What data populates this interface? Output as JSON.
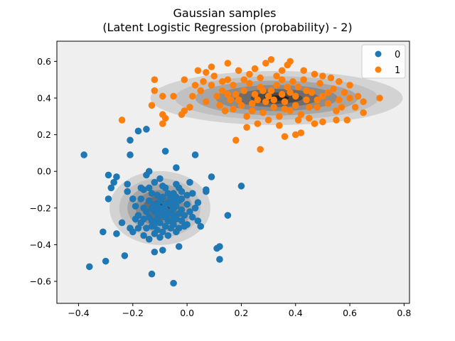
{
  "chart_data": {
    "type": "scatter",
    "title": "Gaussian samples",
    "subtitle": "(Latent Logistic Regression (probability) - 2)",
    "xlabel": "",
    "ylabel": "",
    "xlim": [
      -0.48,
      0.82
    ],
    "ylim": [
      -0.72,
      0.71
    ],
    "x_ticks": [
      -0.4,
      -0.2,
      0.0,
      0.2,
      0.4,
      0.6,
      0.8
    ],
    "x_tick_labels": [
      "−0.4",
      "−0.2",
      "0.0",
      "0.2",
      "0.4",
      "0.6",
      "0.8"
    ],
    "y_ticks": [
      -0.6,
      -0.4,
      -0.2,
      0.0,
      0.2,
      0.4,
      0.6
    ],
    "y_tick_labels": [
      "−0.6",
      "−0.4",
      "−0.2",
      "0.0",
      "0.2",
      "0.4",
      "0.6"
    ],
    "grid": false,
    "legend": {
      "placement": "top-right"
    },
    "plot_background": "#efefef",
    "density_contours": [
      {
        "cx": -0.1,
        "cy": -0.2,
        "sx": 0.12,
        "sy": 0.13,
        "levels": [
          1.55,
          1.25,
          1.0,
          0.75,
          0.52,
          0.32,
          0.15
        ],
        "colors": [
          "#d3d3d3",
          "#c1c1c1",
          "#a6a6a6",
          "#8c8c8c",
          "#6c6c6c",
          "#4a4a4a",
          "#222222"
        ]
      },
      {
        "cx": 0.33,
        "cy": 0.4,
        "sx": 0.3,
        "sy": 0.095,
        "levels": [
          1.55,
          1.25,
          1.0,
          0.75,
          0.52,
          0.32,
          0.15
        ],
        "colors": [
          "#d3d3d3",
          "#c1c1c1",
          "#a6a6a6",
          "#8c8c8c",
          "#6c6c6c",
          "#4a4a4a",
          "#222222"
        ]
      }
    ],
    "series": [
      {
        "name": "0",
        "color": "#1f77b4",
        "points": [
          [
            -0.38,
            0.09
          ],
          [
            -0.36,
            -0.52
          ],
          [
            -0.3,
            -0.49
          ],
          [
            -0.31,
            -0.33
          ],
          [
            -0.29,
            -0.02
          ],
          [
            -0.28,
            -0.09
          ],
          [
            -0.29,
            -0.15
          ],
          [
            -0.27,
            -0.06
          ],
          [
            -0.26,
            -0.03
          ],
          [
            -0.26,
            -0.34
          ],
          [
            -0.24,
            -0.28
          ],
          [
            -0.23,
            -0.46
          ],
          [
            -0.22,
            -0.11
          ],
          [
            -0.22,
            -0.07
          ],
          [
            -0.21,
            0.09
          ],
          [
            -0.21,
            0.17
          ],
          [
            -0.18,
            0.22
          ],
          [
            -0.15,
            0.23
          ],
          [
            -0.13,
            -0.56
          ],
          [
            -0.12,
            -0.44
          ],
          [
            -0.09,
            -0.43
          ],
          [
            -0.08,
            0.11
          ],
          [
            -0.05,
            -0.61
          ],
          [
            -0.04,
            0.02
          ],
          [
            -0.03,
            -0.41
          ],
          [
            0.03,
            0.09
          ],
          [
            0.02,
            -0.12
          ],
          [
            0.04,
            -0.27
          ],
          [
            0.07,
            -0.1
          ],
          [
            0.09,
            -0.03
          ],
          [
            0.11,
            -0.42
          ],
          [
            0.12,
            -0.41
          ],
          [
            0.12,
            -0.48
          ],
          [
            0.15,
            -0.24
          ],
          [
            0.2,
            -0.08
          ],
          [
            0.05,
            -0.3
          ],
          [
            0.07,
            -0.11
          ],
          [
            0.04,
            -0.17
          ],
          [
            -0.2,
            -0.33
          ],
          [
            -0.21,
            -0.31
          ],
          [
            -0.19,
            -0.19
          ],
          [
            -0.17,
            -0.15
          ],
          [
            -0.16,
            -0.1
          ],
          [
            -0.15,
            -0.02
          ],
          [
            -0.14,
            0.0
          ],
          [
            -0.14,
            -0.25
          ],
          [
            -0.13,
            -0.27
          ],
          [
            -0.13,
            -0.3
          ],
          [
            -0.12,
            -0.22
          ],
          [
            -0.12,
            -0.18
          ],
          [
            -0.11,
            -0.13
          ],
          [
            -0.11,
            -0.32
          ],
          [
            -0.1,
            -0.28
          ],
          [
            -0.1,
            -0.2
          ],
          [
            -0.09,
            -0.24
          ],
          [
            -0.09,
            -0.14
          ],
          [
            -0.08,
            -0.09
          ],
          [
            -0.08,
            -0.3
          ],
          [
            -0.07,
            -0.35
          ],
          [
            -0.07,
            -0.17
          ],
          [
            -0.06,
            -0.22
          ],
          [
            -0.06,
            -0.27
          ],
          [
            -0.05,
            -0.12
          ],
          [
            -0.05,
            -0.2
          ],
          [
            -0.04,
            -0.07
          ],
          [
            -0.04,
            -0.26
          ],
          [
            -0.03,
            -0.16
          ],
          [
            -0.03,
            -0.31
          ],
          [
            -0.02,
            -0.21
          ],
          [
            -0.02,
            -0.11
          ],
          [
            -0.01,
            -0.24
          ],
          [
            0.0,
            -0.18
          ],
          [
            0.0,
            -0.29
          ],
          [
            0.01,
            -0.06
          ],
          [
            0.01,
            -0.22
          ],
          [
            -0.18,
            -0.24
          ],
          [
            -0.17,
            -0.28
          ],
          [
            -0.16,
            -0.2
          ],
          [
            -0.15,
            -0.31
          ],
          [
            -0.14,
            -0.16
          ],
          [
            -0.13,
            -0.12
          ],
          [
            -0.12,
            -0.06
          ],
          [
            -0.11,
            -0.26
          ],
          [
            -0.1,
            -0.04
          ],
          [
            -0.09,
            -0.33
          ],
          [
            -0.08,
            -0.18
          ],
          [
            -0.07,
            -0.23
          ],
          [
            -0.06,
            -0.14
          ],
          [
            -0.05,
            -0.29
          ],
          [
            -0.04,
            -0.19
          ],
          [
            -0.03,
            -0.23
          ],
          [
            -0.02,
            -0.15
          ],
          [
            -0.01,
            -0.3
          ],
          [
            0.0,
            -0.13
          ],
          [
            -0.19,
            -0.26
          ],
          [
            -0.17,
            -0.09
          ],
          [
            -0.16,
            -0.35
          ],
          [
            -0.15,
            -0.22
          ],
          [
            -0.14,
            -0.37
          ],
          [
            -0.12,
            -0.29
          ],
          [
            -0.11,
            -0.19
          ],
          [
            -0.1,
            -0.36
          ],
          [
            -0.09,
            -0.08
          ],
          [
            -0.08,
            -0.25
          ],
          [
            -0.07,
            -0.12
          ],
          [
            -0.06,
            -0.31
          ],
          [
            -0.05,
            -0.16
          ],
          [
            -0.04,
            -0.33
          ],
          [
            -0.03,
            -0.09
          ],
          [
            -0.02,
            -0.27
          ],
          [
            -0.13,
            -0.2
          ],
          [
            -0.11,
            -0.23
          ],
          [
            -0.09,
            -0.21
          ],
          [
            -0.07,
            -0.27
          ],
          [
            -0.05,
            -0.24
          ],
          [
            -0.1,
            -0.16
          ],
          [
            -0.08,
            -0.21
          ],
          [
            -0.06,
            -0.18
          ],
          [
            -0.12,
            -0.34
          ],
          [
            -0.04,
            -0.14
          ],
          [
            0.02,
            -0.25
          ],
          [
            -0.2,
            -0.15
          ],
          [
            -0.18,
            -0.31
          ],
          [
            -0.16,
            -0.26
          ],
          [
            -0.14,
            -0.09
          ],
          [
            0.03,
            -0.2
          ]
        ]
      },
      {
        "name": "1",
        "color": "#ff7f0e",
        "points": [
          [
            -0.24,
            0.28
          ],
          [
            -0.13,
            0.36
          ],
          [
            -0.12,
            0.44
          ],
          [
            -0.12,
            0.5
          ],
          [
            -0.09,
            0.41
          ],
          [
            -0.09,
            0.31
          ],
          [
            -0.09,
            0.26
          ],
          [
            -0.08,
            0.29
          ],
          [
            -0.05,
            0.41
          ],
          [
            -0.02,
            0.31
          ],
          [
            -0.01,
            0.33
          ],
          [
            -0.01,
            0.5
          ],
          [
            0.01,
            0.35
          ],
          [
            0.02,
            0.41
          ],
          [
            0.04,
            0.55
          ],
          [
            0.07,
            0.54
          ],
          [
            0.09,
            0.57
          ],
          [
            0.15,
            0.59
          ],
          [
            0.18,
            0.17
          ],
          [
            0.27,
            0.12
          ],
          [
            0.36,
            0.19
          ],
          [
            0.4,
            0.2
          ],
          [
            0.42,
            0.21
          ],
          [
            0.63,
            0.41
          ],
          [
            0.65,
            0.32
          ],
          [
            0.65,
            0.38
          ],
          [
            0.71,
            0.4
          ],
          [
            0.6,
            0.4
          ],
          [
            0.59,
            0.28
          ],
          [
            0.57,
            0.35
          ],
          [
            0.55,
            0.33
          ],
          [
            0.5,
            0.27
          ],
          [
            0.47,
            0.26
          ],
          [
            0.45,
            0.29
          ],
          [
            0.37,
            0.58
          ],
          [
            0.38,
            0.6
          ],
          [
            0.35,
            0.55
          ],
          [
            0.33,
            0.52
          ],
          [
            0.31,
            0.61
          ],
          [
            0.29,
            0.59
          ],
          [
            0.25,
            0.56
          ],
          [
            0.23,
            0.53
          ],
          [
            0.21,
            0.5
          ],
          [
            0.19,
            0.55
          ],
          [
            0.17,
            0.47
          ],
          [
            0.15,
            0.5
          ],
          [
            0.13,
            0.44
          ],
          [
            0.11,
            0.41
          ],
          [
            0.09,
            0.47
          ],
          [
            0.07,
            0.38
          ],
          [
            0.05,
            0.44
          ],
          [
            0.12,
            0.36
          ],
          [
            0.14,
            0.33
          ],
          [
            0.16,
            0.39
          ],
          [
            0.18,
            0.42
          ],
          [
            0.2,
            0.36
          ],
          [
            0.22,
            0.3
          ],
          [
            0.24,
            0.33
          ],
          [
            0.26,
            0.39
          ],
          [
            0.28,
            0.44
          ],
          [
            0.3,
            0.41
          ],
          [
            0.32,
            0.35
          ],
          [
            0.34,
            0.3
          ],
          [
            0.36,
            0.38
          ],
          [
            0.38,
            0.43
          ],
          [
            0.4,
            0.36
          ],
          [
            0.42,
            0.31
          ],
          [
            0.44,
            0.39
          ],
          [
            0.46,
            0.43
          ],
          [
            0.48,
            0.35
          ],
          [
            0.5,
            0.41
          ],
          [
            0.52,
            0.37
          ],
          [
            0.54,
            0.45
          ],
          [
            0.56,
            0.49
          ],
          [
            0.58,
            0.43
          ],
          [
            0.6,
            0.47
          ],
          [
            0.62,
            0.35
          ],
          [
            0.53,
            0.51
          ],
          [
            0.49,
            0.48
          ],
          [
            0.47,
            0.53
          ],
          [
            0.43,
            0.5
          ],
          [
            0.41,
            0.46
          ],
          [
            0.39,
            0.49
          ],
          [
            0.37,
            0.46
          ],
          [
            0.35,
            0.42
          ],
          [
            0.33,
            0.47
          ],
          [
            0.31,
            0.44
          ],
          [
            0.29,
            0.38
          ],
          [
            0.27,
            0.46
          ],
          [
            0.25,
            0.42
          ],
          [
            0.23,
            0.48
          ],
          [
            0.21,
            0.44
          ],
          [
            0.19,
            0.39
          ],
          [
            0.17,
            0.34
          ],
          [
            0.15,
            0.42
          ],
          [
            0.13,
            0.49
          ],
          [
            0.24,
            0.37
          ],
          [
            0.28,
            0.32
          ],
          [
            0.32,
            0.39
          ],
          [
            0.36,
            0.34
          ],
          [
            0.4,
            0.41
          ],
          [
            0.44,
            0.44
          ],
          [
            0.48,
            0.39
          ],
          [
            0.52,
            0.43
          ],
          [
            0.56,
            0.39
          ],
          [
            0.45,
            0.35
          ],
          [
            0.41,
            0.28
          ],
          [
            0.34,
            0.25
          ],
          [
            0.3,
            0.28
          ],
          [
            0.26,
            0.26
          ],
          [
            0.22,
            0.24
          ],
          [
            0.55,
            0.28
          ],
          [
            0.1,
            0.52
          ],
          [
            0.06,
            0.49
          ],
          [
            0.03,
            0.47
          ],
          [
            0.27,
            0.51
          ],
          [
            0.35,
            0.5
          ],
          [
            0.43,
            0.55
          ],
          [
            0.5,
            0.52
          ],
          [
            0.38,
            0.33
          ]
        ]
      }
    ]
  }
}
